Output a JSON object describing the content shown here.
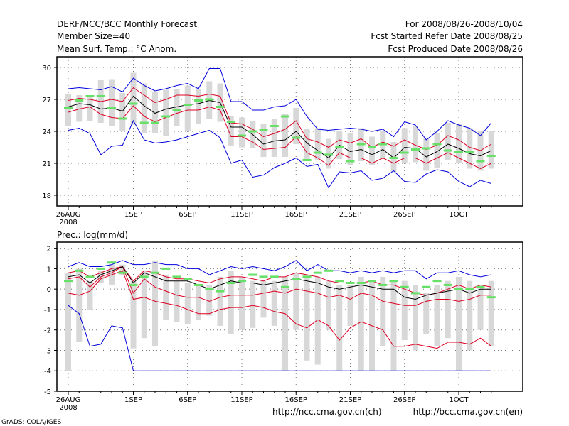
{
  "header": {
    "title": "DERF/NCC/BCC Monthly Forecast",
    "members": "Member Size=40",
    "variable": "Mean Surf. Temp.: °C Anom.",
    "period": "For 2008/08/26-2008/10/04",
    "refer": "Fcst Started Refer Date 2008/08/25",
    "produced": "Fcst Produced Date 2008/08/26"
  },
  "footer": {
    "url_ncc": "http://ncc.cma.gov.cn(ch)",
    "url_bcc": "http://bcc.cma.gov.cn(en)",
    "credit": "GrADS: COLA/IGES"
  },
  "colors": {
    "max_min": "#0000dd",
    "range": "#dd0022",
    "mean": "#000000",
    "obs": "#66e066",
    "box": "#d8d8d8",
    "grid": "#777777"
  },
  "chart_data": [
    {
      "type": "line",
      "title": "Mean Surf. Temp.: °C Anom.",
      "xlabel": "",
      "ylabel": "",
      "ylim": [
        17,
        31
      ],
      "yticks": [
        18,
        21,
        24,
        27,
        30
      ],
      "x_tick_labels": [
        {
          "day": 0,
          "label": "26AUG",
          "sub": "2008"
        },
        {
          "day": 6,
          "label": "1SEP"
        },
        {
          "day": 11,
          "label": "6SEP"
        },
        {
          "day": 16,
          "label": "11SEP"
        },
        {
          "day": 21,
          "label": "16SEP"
        },
        {
          "day": 26,
          "label": "21SEP"
        },
        {
          "day": 31,
          "label": "26SEP"
        },
        {
          "day": 36,
          "label": "1OCT"
        }
      ],
      "days": [
        0,
        1,
        2,
        3,
        4,
        5,
        6,
        7,
        8,
        9,
        10,
        11,
        12,
        13,
        14,
        15,
        16,
        17,
        18,
        19,
        20,
        21,
        22,
        23,
        24,
        25,
        26,
        27,
        28,
        29,
        30,
        31,
        32,
        33,
        34,
        35,
        36,
        37,
        38,
        39
      ],
      "series": [
        {
          "name": "max",
          "values": [
            28.0,
            28.1,
            28.0,
            27.9,
            28.2,
            27.7,
            29.0,
            28.3,
            27.8,
            28.0,
            28.3,
            28.5,
            28.0,
            29.9,
            29.9,
            26.8,
            26.8,
            26.0,
            26.0,
            26.3,
            26.4,
            27.0,
            25.4,
            24.2,
            24.1,
            24.2,
            24.3,
            24.2,
            24.0,
            24.2,
            23.5,
            24.9,
            24.6,
            23.2,
            24.0,
            25.0,
            24.6,
            24.3,
            23.6,
            24.8
          ]
        },
        {
          "name": "upper",
          "values": [
            26.9,
            27.1,
            27.0,
            26.8,
            27.0,
            26.8,
            28.1,
            27.4,
            26.7,
            27.0,
            27.4,
            27.4,
            27.3,
            27.5,
            27.3,
            24.8,
            24.7,
            24.2,
            23.5,
            23.8,
            24.2,
            25.0,
            23.3,
            23.0,
            22.5,
            23.2,
            22.9,
            23.3,
            22.5,
            23.0,
            22.6,
            23.2,
            22.7,
            22.3,
            22.7,
            23.6,
            23.2,
            22.5,
            22.2,
            22.8
          ]
        },
        {
          "name": "mean",
          "values": [
            26.3,
            26.6,
            26.5,
            26.1,
            26.2,
            25.9,
            27.3,
            26.4,
            25.7,
            26.1,
            26.3,
            26.5,
            26.6,
            26.9,
            26.7,
            24.4,
            24.4,
            23.7,
            22.8,
            23.1,
            23.2,
            24.0,
            22.9,
            22.2,
            21.5,
            22.7,
            22.1,
            22.3,
            21.8,
            22.3,
            21.5,
            22.5,
            22.4,
            21.6,
            22.1,
            22.8,
            22.4,
            21.9,
            21.7,
            22.2
          ]
        },
        {
          "name": "lower",
          "values": [
            25.8,
            26.1,
            26.3,
            25.6,
            25.3,
            25.2,
            26.4,
            25.4,
            24.9,
            25.3,
            25.7,
            26.0,
            26.0,
            26.3,
            26.0,
            23.5,
            23.5,
            23.0,
            22.3,
            22.4,
            22.5,
            23.5,
            22.0,
            21.5,
            20.8,
            22.0,
            21.5,
            21.5,
            21.0,
            21.5,
            21.0,
            21.5,
            21.5,
            21.0,
            21.5,
            22.0,
            21.5,
            21.0,
            20.5,
            21.0
          ]
        },
        {
          "name": "min",
          "values": [
            24.1,
            24.3,
            23.8,
            21.8,
            22.6,
            22.7,
            25.0,
            23.2,
            22.9,
            23.0,
            23.2,
            23.5,
            23.8,
            24.1,
            23.4,
            21.0,
            21.3,
            19.7,
            19.9,
            20.6,
            21.0,
            21.5,
            20.7,
            20.9,
            18.7,
            20.2,
            20.1,
            20.3,
            19.4,
            19.6,
            20.3,
            19.3,
            19.2,
            20.0,
            20.4,
            20.2,
            19.3,
            18.8,
            19.4,
            19.1
          ]
        },
        {
          "name": "box_top",
          "values": [
            27.5,
            27.4,
            27.2,
            28.8,
            28.9,
            27.6,
            29.5,
            28.5,
            27.7,
            27.9,
            28.0,
            28.3,
            28.0,
            28.7,
            28.5,
            25.4,
            25.3,
            25.0,
            24.7,
            25.2,
            25.6,
            26.2,
            24.2,
            24.3,
            23.3,
            24.0,
            23.8,
            24.3,
            23.5,
            24.0,
            23.0,
            24.3,
            24.5,
            23.4,
            23.8,
            24.8,
            24.7,
            24.3,
            24.0,
            24.0
          ]
        },
        {
          "name": "box_bottom",
          "values": [
            24.5,
            24.9,
            25.0,
            24.8,
            24.5,
            24.0,
            24.6,
            23.8,
            23.8,
            23.6,
            24.5,
            24.0,
            24.7,
            25.2,
            24.9,
            22.6,
            22.5,
            22.4,
            21.6,
            21.6,
            21.6,
            22.8,
            21.4,
            21.3,
            20.5,
            21.4,
            20.8,
            21.2,
            20.8,
            21.4,
            20.2,
            21.0,
            21.1,
            20.3,
            20.6,
            21.3,
            21.0,
            20.5,
            20.3,
            20.5
          ]
        },
        {
          "name": "observed",
          "values": [
            26.2,
            26.9,
            27.3,
            27.3,
            26.2,
            25.2,
            26.6,
            24.8,
            24.8,
            25.4,
            26.0,
            26.5,
            26.9,
            27.0,
            26.3,
            24.9,
            23.6,
            24.0,
            24.1,
            24.5,
            25.4,
            23.4,
            21.3,
            22.0,
            21.8,
            22.5,
            21.2,
            22.8,
            22.5,
            22.8,
            21.5,
            22.0,
            22.3,
            22.4,
            22.8,
            22.2,
            22.1,
            22.1,
            21.2,
            21.7
          ]
        }
      ]
    },
    {
      "type": "line",
      "title": "Prec.: log(mm/d)",
      "xlabel": "",
      "ylabel": "",
      "ylim": [
        -5,
        2.3
      ],
      "yticks": [
        -5,
        -4,
        -3,
        -2,
        -1,
        0,
        1,
        2
      ],
      "x_tick_labels": [
        {
          "day": 0,
          "label": "26AUG",
          "sub": "2008"
        },
        {
          "day": 6,
          "label": "1SEP"
        },
        {
          "day": 11,
          "label": "6SEP"
        },
        {
          "day": 16,
          "label": "11SEP"
        },
        {
          "day": 21,
          "label": "16SEP"
        },
        {
          "day": 26,
          "label": "21SEP"
        },
        {
          "day": 31,
          "label": "26SEP"
        },
        {
          "day": 36,
          "label": "1OCT"
        }
      ],
      "days": [
        0,
        1,
        2,
        3,
        4,
        5,
        6,
        7,
        8,
        9,
        10,
        11,
        12,
        13,
        14,
        15,
        16,
        17,
        18,
        19,
        20,
        21,
        22,
        23,
        24,
        25,
        26,
        27,
        28,
        29,
        30,
        31,
        32,
        33,
        34,
        35,
        36,
        37,
        38,
        39
      ],
      "series": [
        {
          "name": "max",
          "values": [
            1.1,
            1.3,
            1.1,
            1.1,
            1.2,
            1.4,
            1.2,
            1.2,
            1.3,
            1.2,
            1.2,
            1.0,
            1.0,
            0.7,
            0.9,
            1.1,
            1.0,
            1.1,
            1.0,
            0.9,
            1.1,
            1.4,
            0.9,
            1.2,
            0.9,
            0.9,
            0.8,
            0.9,
            0.8,
            0.9,
            0.8,
            0.9,
            0.9,
            0.5,
            0.8,
            0.8,
            0.9,
            0.7,
            0.6,
            0.7
          ]
        },
        {
          "name": "upper",
          "values": [
            0.8,
            0.9,
            0.6,
            0.8,
            1.0,
            1.1,
            0.4,
            0.9,
            0.8,
            0.6,
            0.5,
            0.5,
            0.4,
            0.3,
            0.5,
            0.6,
            0.6,
            0.5,
            0.4,
            0.6,
            0.6,
            0.8,
            0.7,
            0.6,
            0.4,
            0.3,
            0.3,
            0.3,
            0.4,
            0.2,
            0.2,
            0.0,
            -0.2,
            -0.3,
            -0.2,
            0.0,
            0.2,
            0.0,
            0.2,
            0.1
          ]
        },
        {
          "name": "mean",
          "values": [
            0.6,
            0.7,
            0.3,
            0.7,
            0.9,
            1.1,
            0.3,
            0.8,
            0.6,
            0.4,
            0.4,
            0.4,
            0.2,
            0.0,
            0.2,
            0.4,
            0.3,
            0.3,
            0.2,
            0.3,
            0.4,
            0.5,
            0.4,
            0.3,
            0.1,
            0.0,
            0.1,
            0.2,
            0.1,
            0.0,
            0.0,
            -0.4,
            -0.5,
            -0.3,
            -0.2,
            -0.1,
            0.0,
            -0.2,
            0.0,
            0.0
          ]
        },
        {
          "name": "lower",
          "values": [
            0.5,
            0.6,
            0.1,
            0.6,
            0.8,
            1.1,
            -0.2,
            0.5,
            0.1,
            -0.1,
            -0.3,
            -0.4,
            -0.4,
            -0.6,
            -0.4,
            -0.3,
            -0.3,
            -0.3,
            -0.2,
            -0.1,
            -0.2,
            0.0,
            -0.1,
            -0.2,
            -0.4,
            -0.3,
            -0.5,
            -0.2,
            -0.3,
            -0.6,
            -0.7,
            -0.8,
            -0.8,
            -0.6,
            -0.5,
            -0.5,
            -0.6,
            -0.5,
            -0.3,
            -0.3
          ]
        },
        {
          "name": "min",
          "values": [
            -0.8,
            -1.2,
            -2.8,
            -2.7,
            -1.8,
            -1.9,
            -4.0,
            -4.0,
            -4.0,
            -4.0,
            -4.0,
            -4.0,
            -4.0,
            -4.0,
            -4.0,
            -4.0,
            -4.0,
            -4.0,
            -4.0,
            -4.0,
            -4.0,
            -4.0,
            -4.0,
            -4.0,
            -4.0,
            -4.0,
            -4.0,
            -4.0,
            -4.0,
            -4.0,
            -4.0,
            -4.0,
            -4.0,
            -4.0,
            -4.0,
            -4.0,
            -4.0,
            -4.0,
            -4.0,
            -4.0
          ]
        },
        {
          "name": "red_low",
          "values": [
            -0.2,
            -0.3,
            -0.1,
            0.5,
            0.7,
            0.9,
            -0.5,
            -0.4,
            -0.6,
            -0.7,
            -0.8,
            -1.0,
            -1.2,
            -1.2,
            -1.0,
            -0.9,
            -0.9,
            -0.8,
            -0.9,
            -1.1,
            -1.2,
            -1.7,
            -1.9,
            -1.5,
            -1.8,
            -2.5,
            -1.9,
            -1.6,
            -1.8,
            -2.0,
            -2.8,
            -2.8,
            -2.7,
            -2.8,
            -2.9,
            -2.6,
            -2.6,
            -2.7,
            -2.4,
            -2.8
          ]
        },
        {
          "name": "box_top",
          "values": [
            0.8,
            1.0,
            0.4,
            0.9,
            1.2,
            1.2,
            0.4,
            0.9,
            1.4,
            0.7,
            0.4,
            0.3,
            0.2,
            0.2,
            0.6,
            0.9,
            0.6,
            0.4,
            0.4,
            0.4,
            0.6,
            0.8,
            0.7,
            0.6,
            0.4,
            0.2,
            0.2,
            0.6,
            0.4,
            0.6,
            0.4,
            0.4,
            0.2,
            -0.2,
            0.2,
            0.4,
            0.6,
            0.4,
            0.2,
            0.4
          ]
        },
        {
          "name": "box_bottom",
          "values": [
            -4.0,
            -2.6,
            -1.0,
            0.3,
            0.2,
            0.7,
            -2.9,
            -2.4,
            -2.8,
            -1.5,
            -1.6,
            -1.7,
            -1.5,
            -1.3,
            -1.8,
            -2.2,
            -2.0,
            -1.9,
            -1.4,
            -1.8,
            -4.0,
            -2.0,
            -3.5,
            -3.7,
            -2.0,
            -4.0,
            -1.8,
            -4.0,
            -4.0,
            -2.8,
            -4.0,
            -2.5,
            -3.0,
            -2.2,
            -2.8,
            -2.4,
            -4.0,
            -3.0,
            -2.0,
            -2.8
          ]
        },
        {
          "name": "observed",
          "values": [
            0.4,
            0.9,
            0.6,
            1.0,
            1.3,
            0.8,
            0.2,
            0.6,
            0.8,
            1.0,
            0.6,
            0.5,
            0.2,
            0.0,
            -0.1,
            0.3,
            0.4,
            0.7,
            0.6,
            0.6,
            0.1,
            0.5,
            0.6,
            0.8,
            0.9,
            0.4,
            0.3,
            0.3,
            0.4,
            0.2,
            0.4,
            0.1,
            -0.2,
            0.1,
            0.4,
            0.2,
            0.0,
            0.0,
            0.1,
            -0.4
          ]
        }
      ]
    }
  ]
}
